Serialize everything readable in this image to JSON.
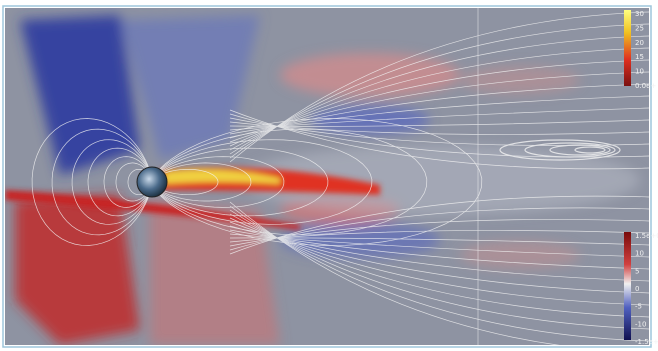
{
  "colorbars": [
    {
      "labels": [
        "30",
        "25",
        "20",
        "15",
        "10",
        "0.0e+"
      ]
    },
    {
      "labels": [
        "1.5e+0",
        "10",
        "5",
        "0",
        "-5",
        "-10",
        "-1.5e+"
      ]
    }
  ]
}
